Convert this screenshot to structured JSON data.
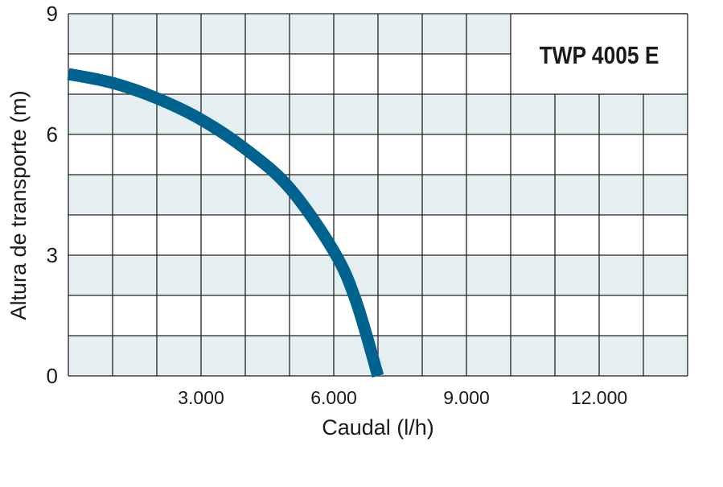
{
  "chart_data": {
    "type": "line",
    "title": "TWP 4005 E",
    "xlabel": "Caudal (l/h)",
    "ylabel": "Altura de transporte (m)",
    "xlim": [
      0,
      14000
    ],
    "ylim": [
      0,
      9
    ],
    "x_ticks": [
      3000,
      6000,
      9000,
      12000
    ],
    "x_tick_labels": [
      "3.000",
      "6.000",
      "9.000",
      "12.000"
    ],
    "y_ticks": [
      0,
      3,
      6,
      9
    ],
    "y_tick_labels": [
      "0",
      "3",
      "6",
      "9"
    ],
    "grid": true,
    "grid_step_x": 1000,
    "grid_step_y": 1,
    "colors": {
      "line": "#00628f",
      "band": "#e5eff2",
      "grid": "#222222"
    },
    "series": [
      {
        "x": [
          0,
          1000,
          2000,
          3000,
          4000,
          5000,
          6000,
          6500,
          7000
        ],
        "y": [
          7.5,
          7.28,
          6.9,
          6.37,
          5.64,
          4.67,
          3.1,
          1.87,
          0
        ]
      }
    ]
  }
}
